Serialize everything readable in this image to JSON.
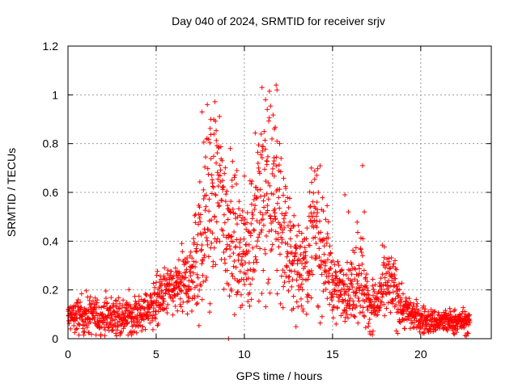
{
  "chart_data": {
    "type": "scatter",
    "title": "Day 040 of 2024, SRMTID for receiver srjv",
    "xlabel": "GPS time / hours",
    "ylabel": "SRMTID / TECUs",
    "xlim": [
      0,
      24
    ],
    "ylim": [
      0,
      1.2
    ],
    "xticks": [
      0,
      5,
      10,
      15,
      20
    ],
    "yticks": [
      0,
      0.2,
      0.4,
      0.6,
      0.8,
      1,
      1.2
    ],
    "xtick_labels": [
      "0",
      "5",
      "10",
      "15",
      "20"
    ],
    "ytick_labels": [
      "0",
      "0.2",
      "0.4",
      "0.6",
      "0.8",
      "1",
      "1.2"
    ],
    "grid": true,
    "marker": "+",
    "series": [
      {
        "name": "SRMTID",
        "color": "#ff0000",
        "envelope": {
          "x": [
            0,
            1,
            2,
            3,
            4,
            4.5,
            5,
            5.5,
            6,
            6.5,
            7,
            7.5,
            8,
            8.5,
            9,
            9.5,
            10,
            10.5,
            11,
            11.5,
            12,
            12.5,
            13,
            13.5,
            14,
            14.5,
            15,
            15.5,
            16,
            16.5,
            17,
            17.5,
            18,
            18.5,
            19,
            19.5,
            20,
            20.5,
            21,
            21.5,
            22,
            22.5,
            22.8
          ],
          "median": [
            0.09,
            0.1,
            0.09,
            0.09,
            0.1,
            0.12,
            0.15,
            0.19,
            0.2,
            0.22,
            0.26,
            0.4,
            0.55,
            0.62,
            0.48,
            0.4,
            0.35,
            0.45,
            0.55,
            0.6,
            0.5,
            0.35,
            0.3,
            0.32,
            0.45,
            0.38,
            0.22,
            0.2,
            0.2,
            0.3,
            0.14,
            0.14,
            0.22,
            0.2,
            0.12,
            0.1,
            0.08,
            0.07,
            0.07,
            0.07,
            0.07,
            0.07,
            0.07
          ],
          "spread": [
            0.03,
            0.04,
            0.035,
            0.04,
            0.04,
            0.04,
            0.05,
            0.05,
            0.05,
            0.06,
            0.08,
            0.15,
            0.2,
            0.18,
            0.15,
            0.12,
            0.12,
            0.15,
            0.2,
            0.2,
            0.18,
            0.1,
            0.1,
            0.1,
            0.15,
            0.12,
            0.06,
            0.05,
            0.06,
            0.12,
            0.05,
            0.05,
            0.07,
            0.07,
            0.04,
            0.03,
            0.03,
            0.025,
            0.025,
            0.025,
            0.025,
            0.025,
            0.02
          ]
        },
        "highlights": [
          {
            "x": 7.6,
            "y": 0.93
          },
          {
            "x": 7.9,
            "y": 0.96
          },
          {
            "x": 8.1,
            "y": 0.9
          },
          {
            "x": 8.4,
            "y": 0.72
          },
          {
            "x": 9.2,
            "y": 0.78
          },
          {
            "x": 9.3,
            "y": 0.65
          },
          {
            "x": 11.0,
            "y": 1.03
          },
          {
            "x": 11.2,
            "y": 0.98
          },
          {
            "x": 11.3,
            "y": 0.94
          },
          {
            "x": 11.8,
            "y": 1.04
          },
          {
            "x": 11.85,
            "y": 1.02
          },
          {
            "x": 11.7,
            "y": 0.86
          },
          {
            "x": 12.0,
            "y": 0.8
          },
          {
            "x": 13.8,
            "y": 0.7
          },
          {
            "x": 14.1,
            "y": 0.67
          },
          {
            "x": 15.7,
            "y": 0.59
          },
          {
            "x": 15.9,
            "y": 0.52
          },
          {
            "x": 16.7,
            "y": 0.71
          },
          {
            "x": 16.8,
            "y": 0.52
          },
          {
            "x": 18.2,
            "y": 0.33
          },
          {
            "x": 18.8,
            "y": 0.2
          },
          {
            "x": 15.2,
            "y": 0.06
          },
          {
            "x": 9.1,
            "y": 0.0
          }
        ]
      }
    ]
  }
}
